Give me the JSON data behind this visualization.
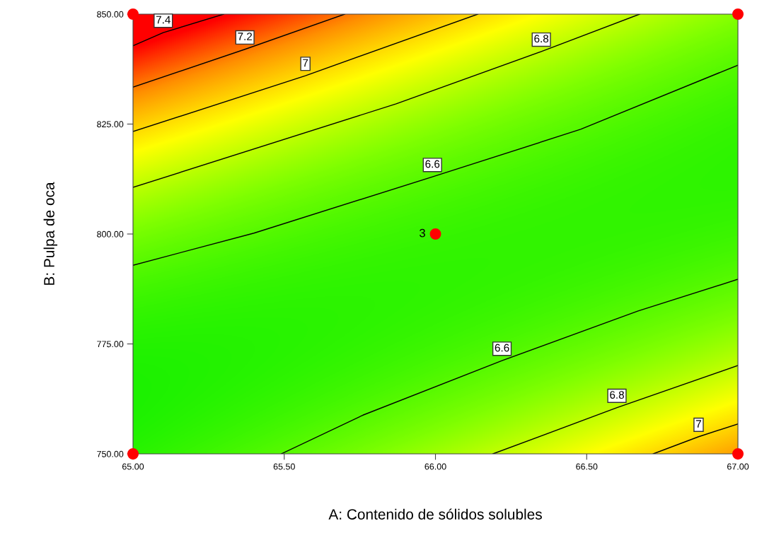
{
  "chart_data": {
    "type": "line",
    "xlabel": "A: Contenido de sólidos solubles",
    "ylabel": "B: Pulpa de oca",
    "xlim": [
      65,
      67
    ],
    "ylim": [
      750,
      850
    ],
    "xticks": [
      {
        "value": 65,
        "label": "65.00"
      },
      {
        "value": 65.5,
        "label": "65.50"
      },
      {
        "value": 66,
        "label": "66.00"
      },
      {
        "value": 66.5,
        "label": "66.50"
      },
      {
        "value": 67,
        "label": "67.00"
      }
    ],
    "yticks": [
      {
        "value": 750,
        "label": "750.00"
      },
      {
        "value": 775,
        "label": "775.00"
      },
      {
        "value": 800,
        "label": "800.00"
      },
      {
        "value": 825,
        "label": "825.00"
      },
      {
        "value": 850,
        "label": "850.00"
      }
    ],
    "marker": "none",
    "line_style": "solid",
    "series": [
      {
        "name": "7.4",
        "color": "#000000",
        "x": [
          65,
          65.1,
          65.3
        ],
        "values": [
          842.8,
          845.8,
          850
        ]
      },
      {
        "name": "7.2",
        "color": "#000000",
        "x": [
          65,
          65.37,
          65.7
        ],
        "values": [
          833.4,
          842.0,
          850
        ]
      },
      {
        "name": "7",
        "color": "#000000",
        "x": [
          65,
          65.57,
          66.14
        ],
        "values": [
          823.3,
          836.0,
          850
        ]
      },
      {
        "name": "6.8",
        "color": "#000000",
        "x": [
          65,
          65.87,
          66.35,
          66.675
        ],
        "values": [
          810.6,
          829.6,
          841.5,
          850
        ]
      },
      {
        "name": "6.6",
        "color": "#000000",
        "x": [
          65,
          65.4,
          65.99,
          66.48,
          67
        ],
        "values": [
          792.9,
          800.2,
          813.0,
          823.8,
          838.4
        ]
      },
      {
        "name": "6.6",
        "color": "#000000",
        "x": [
          65.49,
          65.76,
          66.22,
          66.67,
          67
        ],
        "values": [
          750,
          758.8,
          771.2,
          782.5,
          789.7
        ]
      },
      {
        "name": "6.8",
        "color": "#000000",
        "x": [
          66.19,
          66.6,
          67
        ],
        "values": [
          750,
          760.5,
          770.1
        ]
      },
      {
        "name": "7",
        "color": "#000000",
        "x": [
          66.72,
          66.87,
          67
        ],
        "values": [
          750,
          753.9,
          756.8
        ]
      },
      {
        "type": "scatter",
        "color": "#ff0000",
        "marker": "circle",
        "x": [
          65,
          67,
          65,
          67,
          66
        ],
        "values": [
          850,
          850,
          750,
          750,
          800
        ]
      }
    ],
    "annotations": [
      {
        "text": "3",
        "x": 66,
        "y": 800
      }
    ]
  }
}
